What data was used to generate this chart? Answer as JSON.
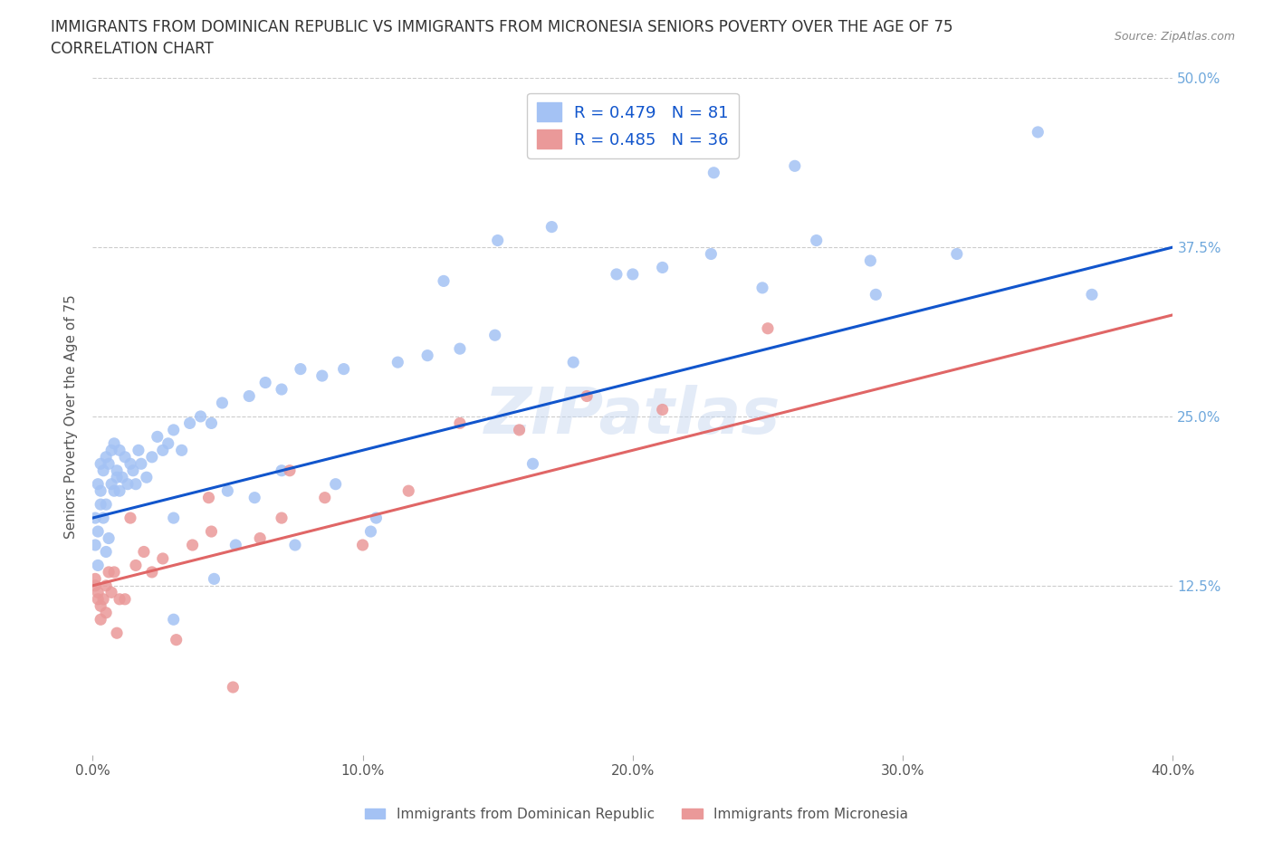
{
  "title_line1": "IMMIGRANTS FROM DOMINICAN REPUBLIC VS IMMIGRANTS FROM MICRONESIA SENIORS POVERTY OVER THE AGE OF 75",
  "title_line2": "CORRELATION CHART",
  "source": "Source: ZipAtlas.com",
  "ylabel": "Seniors Poverty Over the Age of 75",
  "x_min": 0.0,
  "x_max": 0.4,
  "y_min": 0.0,
  "y_max": 0.5,
  "x_ticks": [
    0.0,
    0.1,
    0.2,
    0.3,
    0.4
  ],
  "x_tick_labels": [
    "0.0%",
    "10.0%",
    "20.0%",
    "30.0%",
    "40.0%"
  ],
  "y_ticks": [
    0.0,
    0.125,
    0.25,
    0.375,
    0.5
  ],
  "y_tick_labels": [
    "",
    "12.5%",
    "25.0%",
    "37.5%",
    "50.0%"
  ],
  "series": [
    {
      "name": "Immigrants from Dominican Republic",
      "R": 0.479,
      "N": 81,
      "scatter_color": "#a4c2f4",
      "line_color": "#1155cc",
      "trend_start_y": 0.175,
      "trend_end_y": 0.375,
      "x": [
        0.001,
        0.001,
        0.002,
        0.002,
        0.002,
        0.003,
        0.003,
        0.003,
        0.004,
        0.004,
        0.005,
        0.005,
        0.005,
        0.006,
        0.006,
        0.007,
        0.007,
        0.008,
        0.008,
        0.009,
        0.009,
        0.01,
        0.01,
        0.011,
        0.012,
        0.013,
        0.014,
        0.015,
        0.016,
        0.017,
        0.018,
        0.02,
        0.022,
        0.024,
        0.026,
        0.028,
        0.03,
        0.033,
        0.036,
        0.04,
        0.044,
        0.048,
        0.053,
        0.058,
        0.064,
        0.07,
        0.077,
        0.085,
        0.093,
        0.103,
        0.113,
        0.124,
        0.136,
        0.149,
        0.163,
        0.178,
        0.194,
        0.211,
        0.229,
        0.248,
        0.268,
        0.288,
        0.03,
        0.045,
        0.06,
        0.075,
        0.09,
        0.105,
        0.13,
        0.15,
        0.17,
        0.2,
        0.23,
        0.26,
        0.29,
        0.32,
        0.35,
        0.37,
        0.03,
        0.05,
        0.07
      ],
      "y": [
        0.155,
        0.175,
        0.14,
        0.165,
        0.2,
        0.185,
        0.195,
        0.215,
        0.175,
        0.21,
        0.15,
        0.185,
        0.22,
        0.16,
        0.215,
        0.2,
        0.225,
        0.195,
        0.23,
        0.21,
        0.205,
        0.195,
        0.225,
        0.205,
        0.22,
        0.2,
        0.215,
        0.21,
        0.2,
        0.225,
        0.215,
        0.205,
        0.22,
        0.235,
        0.225,
        0.23,
        0.24,
        0.225,
        0.245,
        0.25,
        0.245,
        0.26,
        0.155,
        0.265,
        0.275,
        0.27,
        0.285,
        0.28,
        0.285,
        0.165,
        0.29,
        0.295,
        0.3,
        0.31,
        0.215,
        0.29,
        0.355,
        0.36,
        0.37,
        0.345,
        0.38,
        0.365,
        0.1,
        0.13,
        0.19,
        0.155,
        0.2,
        0.175,
        0.35,
        0.38,
        0.39,
        0.355,
        0.43,
        0.435,
        0.34,
        0.37,
        0.46,
        0.34,
        0.175,
        0.195,
        0.21
      ]
    },
    {
      "name": "Immigrants from Micronesia",
      "R": 0.485,
      "N": 36,
      "scatter_color": "#ea9999",
      "line_color": "#e06666",
      "trend_start_y": 0.125,
      "trend_end_y": 0.325,
      "x": [
        0.001,
        0.001,
        0.002,
        0.002,
        0.003,
        0.003,
        0.004,
        0.005,
        0.005,
        0.006,
        0.007,
        0.008,
        0.009,
        0.01,
        0.012,
        0.014,
        0.016,
        0.019,
        0.022,
        0.026,
        0.031,
        0.037,
        0.044,
        0.052,
        0.062,
        0.073,
        0.086,
        0.1,
        0.117,
        0.136,
        0.158,
        0.183,
        0.211,
        0.043,
        0.07,
        0.25
      ],
      "y": [
        0.13,
        0.125,
        0.12,
        0.115,
        0.1,
        0.11,
        0.115,
        0.125,
        0.105,
        0.135,
        0.12,
        0.135,
        0.09,
        0.115,
        0.115,
        0.175,
        0.14,
        0.15,
        0.135,
        0.145,
        0.085,
        0.155,
        0.165,
        0.05,
        0.16,
        0.21,
        0.19,
        0.155,
        0.195,
        0.245,
        0.24,
        0.265,
        0.255,
        0.19,
        0.175,
        0.315
      ]
    }
  ],
  "background_color": "#ffffff",
  "grid_color": "#cccccc",
  "title_fontsize": 12,
  "axis_label_fontsize": 11,
  "tick_fontsize": 11,
  "watermark": "ZIPatlas",
  "watermark_color": "#c8d8f0",
  "watermark_alpha": 0.5
}
